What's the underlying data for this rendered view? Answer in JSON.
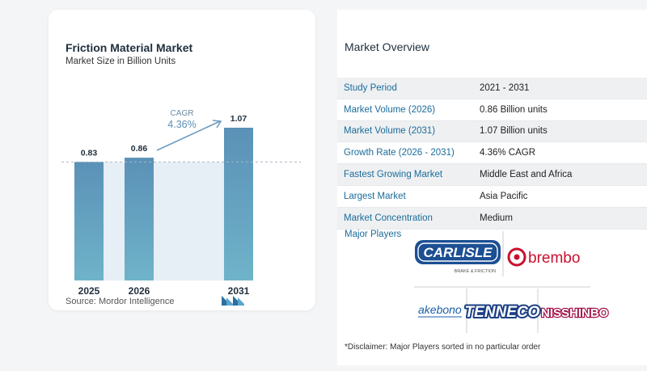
{
  "chart_data": {
    "type": "bar",
    "title": "Friction Material Market",
    "subtitle": "Market Size in Billion Units",
    "categories": [
      "2025",
      "2026",
      "2031"
    ],
    "values": [
      0.83,
      0.86,
      1.07
    ],
    "value_labels": [
      "0.83",
      "0.86",
      "1.07"
    ],
    "ylim": [
      0,
      1.07
    ],
    "grid": false,
    "bar_color": "#5b91b7",
    "annotation": {
      "label": "CAGR",
      "value": "4.36%"
    }
  },
  "source": "Source:  Mordor Intelligence",
  "overview": {
    "title": "Market Overview",
    "rows": [
      {
        "key": "Study Period",
        "value": "2021 - 2031"
      },
      {
        "key": "Market Volume (2026)",
        "value": "0.86 Billion units"
      },
      {
        "key": "Market Volume (2031)",
        "value": "1.07 Billion units"
      },
      {
        "key": "Growth Rate (2026 - 2031)",
        "value": "4.36% CAGR"
      },
      {
        "key": "Fastest Growing Market",
        "value": "Middle East and Africa"
      },
      {
        "key": "Largest Market",
        "value": "Asia Pacific"
      },
      {
        "key": "Market Concentration",
        "value": "Medium"
      }
    ],
    "players_label": "Major Players",
    "players": {
      "carlisle": {
        "name": "CARLISLE",
        "tagline": "BRAKE & FRICTION"
      },
      "brembo": "brembo",
      "akebono": "akebono",
      "tenneco": "TENNECO",
      "nisshinbo": "NISSHINBO"
    },
    "disclaimer": "*Disclaimer: Major Players sorted in no particular order"
  }
}
